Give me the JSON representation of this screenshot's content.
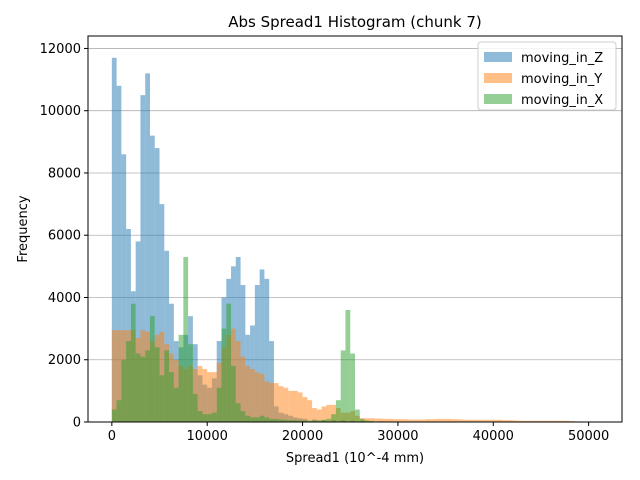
{
  "chart_data": {
    "type": "bar",
    "title": "Abs Spread1 Histogram (chunk 7)",
    "xlabel": "Spread1 (10^-4 mm)",
    "ylabel": "Frequency",
    "xlim": [
      -2500,
      53500
    ],
    "ylim": [
      0,
      12400
    ],
    "xticks": [
      0,
      10000,
      20000,
      30000,
      40000,
      50000
    ],
    "xtick_labels": [
      "0",
      "10000",
      "20000",
      "30000",
      "40000",
      "50000"
    ],
    "yticks": [
      0,
      2000,
      4000,
      6000,
      8000,
      10000,
      12000
    ],
    "ytick_labels": [
      "0",
      "2000",
      "4000",
      "6000",
      "8000",
      "10000",
      "12000"
    ],
    "grid": "y",
    "legend_position": "top-right",
    "bin_width": 500,
    "series": [
      {
        "name": "moving_in_Z",
        "color": "#1f77b4",
        "bins": [
          [
            0,
            11700
          ],
          [
            500,
            10800
          ],
          [
            1000,
            8600
          ],
          [
            1500,
            6200
          ],
          [
            2000,
            4200
          ],
          [
            2500,
            5800
          ],
          [
            3000,
            10500
          ],
          [
            3500,
            11200
          ],
          [
            4000,
            9200
          ],
          [
            4500,
            8800
          ],
          [
            5000,
            7000
          ],
          [
            5500,
            5500
          ],
          [
            6000,
            3800
          ],
          [
            6500,
            2600
          ],
          [
            7000,
            2400
          ],
          [
            7500,
            2800
          ],
          [
            8000,
            3400
          ],
          [
            8500,
            2500
          ],
          [
            9000,
            1500
          ],
          [
            9500,
            1200
          ],
          [
            10000,
            1100
          ],
          [
            10500,
            1400
          ],
          [
            11000,
            2600
          ],
          [
            11500,
            4000
          ],
          [
            12000,
            4600
          ],
          [
            12500,
            5000
          ],
          [
            13000,
            5300
          ],
          [
            13500,
            4400
          ],
          [
            14000,
            2800
          ],
          [
            14500,
            3100
          ],
          [
            15000,
            4400
          ],
          [
            15500,
            4900
          ],
          [
            16000,
            4600
          ],
          [
            16500,
            2600
          ],
          [
            17000,
            500
          ],
          [
            17500,
            300
          ],
          [
            18000,
            250
          ],
          [
            18500,
            200
          ],
          [
            19000,
            150
          ],
          [
            19500,
            120
          ],
          [
            20000,
            100
          ],
          [
            21000,
            80
          ],
          [
            22000,
            60
          ],
          [
            23000,
            60
          ],
          [
            24000,
            60
          ],
          [
            25000,
            50
          ],
          [
            26000,
            40
          ],
          [
            27000,
            30
          ],
          [
            28000,
            25
          ],
          [
            29000,
            20
          ]
        ]
      },
      {
        "name": "moving_in_Y",
        "color": "#ff7f0e",
        "bins": [
          [
            0,
            2950
          ],
          [
            500,
            2950
          ],
          [
            1000,
            2950
          ],
          [
            1500,
            2950
          ],
          [
            2000,
            2950
          ],
          [
            2500,
            2700
          ],
          [
            3000,
            2950
          ],
          [
            3500,
            2900
          ],
          [
            4000,
            2600
          ],
          [
            4500,
            2800
          ],
          [
            5000,
            2900
          ],
          [
            5500,
            2500
          ],
          [
            6000,
            2200
          ],
          [
            6500,
            2000
          ],
          [
            7000,
            1800
          ],
          [
            7500,
            1700
          ],
          [
            8000,
            1800
          ],
          [
            8500,
            1700
          ],
          [
            9000,
            1800
          ],
          [
            9500,
            1700
          ],
          [
            10000,
            1600
          ],
          [
            10500,
            1600
          ],
          [
            11000,
            1900
          ],
          [
            11500,
            2400
          ],
          [
            12000,
            2800
          ],
          [
            12500,
            3000
          ],
          [
            13000,
            2600
          ],
          [
            13500,
            2100
          ],
          [
            14000,
            1800
          ],
          [
            14500,
            1700
          ],
          [
            15000,
            1600
          ],
          [
            15500,
            1550
          ],
          [
            16000,
            1300
          ],
          [
            16500,
            1250
          ],
          [
            17000,
            1250
          ],
          [
            17500,
            1150
          ],
          [
            18000,
            1100
          ],
          [
            18500,
            1000
          ],
          [
            19000,
            1000
          ],
          [
            19500,
            950
          ],
          [
            20000,
            800
          ],
          [
            20500,
            700
          ],
          [
            21000,
            450
          ],
          [
            21500,
            400
          ],
          [
            22000,
            500
          ],
          [
            22500,
            550
          ],
          [
            23000,
            550
          ],
          [
            23500,
            450
          ],
          [
            24000,
            300
          ],
          [
            24500,
            300
          ],
          [
            25000,
            350
          ],
          [
            25500,
            200
          ],
          [
            26000,
            120
          ],
          [
            26500,
            120
          ],
          [
            27000,
            120
          ],
          [
            27500,
            110
          ],
          [
            28000,
            110
          ],
          [
            28500,
            100
          ],
          [
            29000,
            100
          ],
          [
            29500,
            90
          ],
          [
            30000,
            90
          ],
          [
            30500,
            90
          ],
          [
            31000,
            80
          ],
          [
            31500,
            80
          ],
          [
            32000,
            80
          ],
          [
            32500,
            80
          ],
          [
            33000,
            90
          ],
          [
            33500,
            90
          ],
          [
            34000,
            100
          ],
          [
            34500,
            100
          ],
          [
            35000,
            100
          ],
          [
            35500,
            90
          ],
          [
            36000,
            90
          ],
          [
            36500,
            80
          ],
          [
            37000,
            70
          ],
          [
            37500,
            70
          ],
          [
            38000,
            70
          ],
          [
            38500,
            70
          ],
          [
            39000,
            70
          ],
          [
            39500,
            70
          ],
          [
            40000,
            70
          ],
          [
            40500,
            70
          ],
          [
            41000,
            60
          ],
          [
            41500,
            60
          ],
          [
            42000,
            50
          ],
          [
            42500,
            40
          ],
          [
            43000,
            40
          ],
          [
            43500,
            40
          ],
          [
            44000,
            40
          ],
          [
            44500,
            40
          ],
          [
            45000,
            40
          ],
          [
            45500,
            40
          ],
          [
            46000,
            40
          ],
          [
            46500,
            40
          ],
          [
            47000,
            40
          ],
          [
            47500,
            40
          ],
          [
            48000,
            30
          ],
          [
            48500,
            20
          ],
          [
            49000,
            10
          ],
          [
            49500,
            10
          ],
          [
            50000,
            10
          ]
        ]
      },
      {
        "name": "moving_in_X",
        "color": "#2ca02c",
        "bins": [
          [
            0,
            400
          ],
          [
            500,
            700
          ],
          [
            1000,
            2000
          ],
          [
            1500,
            2600
          ],
          [
            2000,
            3800
          ],
          [
            2500,
            2200
          ],
          [
            3000,
            2100
          ],
          [
            3500,
            2300
          ],
          [
            4000,
            3400
          ],
          [
            4500,
            2400
          ],
          [
            5000,
            1500
          ],
          [
            5500,
            2300
          ],
          [
            6000,
            1600
          ],
          [
            6500,
            1100
          ],
          [
            7000,
            2800
          ],
          [
            7500,
            5300
          ],
          [
            8000,
            2500
          ],
          [
            8500,
            900
          ],
          [
            9000,
            350
          ],
          [
            9500,
            250
          ],
          [
            10000,
            250
          ],
          [
            10500,
            300
          ],
          [
            11000,
            1100
          ],
          [
            11500,
            3000
          ],
          [
            12000,
            3800
          ],
          [
            12500,
            1800
          ],
          [
            13000,
            600
          ],
          [
            13500,
            350
          ],
          [
            14000,
            200
          ],
          [
            14500,
            150
          ],
          [
            15000,
            150
          ],
          [
            15500,
            200
          ],
          [
            16000,
            150
          ],
          [
            16500,
            100
          ],
          [
            17000,
            100
          ],
          [
            17500,
            80
          ],
          [
            18000,
            70
          ],
          [
            18500,
            60
          ],
          [
            19000,
            60
          ],
          [
            19500,
            50
          ],
          [
            20000,
            50
          ],
          [
            20500,
            50
          ],
          [
            21000,
            50
          ],
          [
            21500,
            60
          ],
          [
            22000,
            70
          ],
          [
            22500,
            100
          ],
          [
            23000,
            250
          ],
          [
            23500,
            700
          ],
          [
            24000,
            2300
          ],
          [
            24500,
            3600
          ],
          [
            25000,
            2200
          ],
          [
            25500,
            400
          ],
          [
            26000,
            100
          ],
          [
            26500,
            50
          ],
          [
            27000,
            20
          ]
        ]
      }
    ]
  }
}
